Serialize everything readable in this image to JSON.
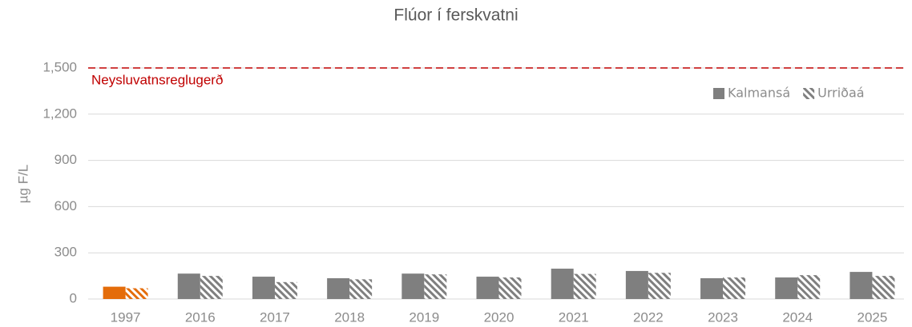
{
  "chart_data": {
    "type": "bar",
    "title": "Flúor í ferskvatni",
    "y_label": "µg F/L",
    "categories": [
      "1997",
      "2016",
      "2017",
      "2018",
      "2019",
      "2020",
      "2021",
      "2022",
      "2023",
      "2024",
      "2025"
    ],
    "series": [
      {
        "name": "Kalmansá",
        "color": "#7f7f7f",
        "pattern": "solid",
        "colors": [
          "#e46c0a",
          "#7f7f7f",
          "#7f7f7f",
          "#7f7f7f",
          "#7f7f7f",
          "#7f7f7f",
          "#7f7f7f",
          "#7f7f7f",
          "#7f7f7f",
          "#7f7f7f",
          "#7f7f7f"
        ],
        "values": [
          80,
          165,
          145,
          135,
          165,
          145,
          197,
          182,
          135,
          140,
          176
        ]
      },
      {
        "name": "Urriðaá",
        "color": "#7f7f7f",
        "pattern": "hatch",
        "colors": [
          "#e46c0a",
          "#7f7f7f",
          "#7f7f7f",
          "#7f7f7f",
          "#7f7f7f",
          "#7f7f7f",
          "#7f7f7f",
          "#7f7f7f",
          "#7f7f7f",
          "#7f7f7f",
          "#7f7f7f"
        ],
        "values": [
          70,
          150,
          110,
          128,
          160,
          140,
          163,
          170,
          140,
          155,
          150
        ]
      }
    ],
    "ylim": [
      0,
      1500
    ],
    "yticks": [
      0,
      300,
      600,
      900,
      {
        "value": 1200,
        "label": "1,200"
      },
      {
        "value": 1500,
        "label": "1,500"
      }
    ],
    "grid": true,
    "legend": "upper right",
    "reference_line": {
      "value": 1500,
      "label": "Neysluvatnsreglugerð",
      "color": "#c00000"
    }
  }
}
